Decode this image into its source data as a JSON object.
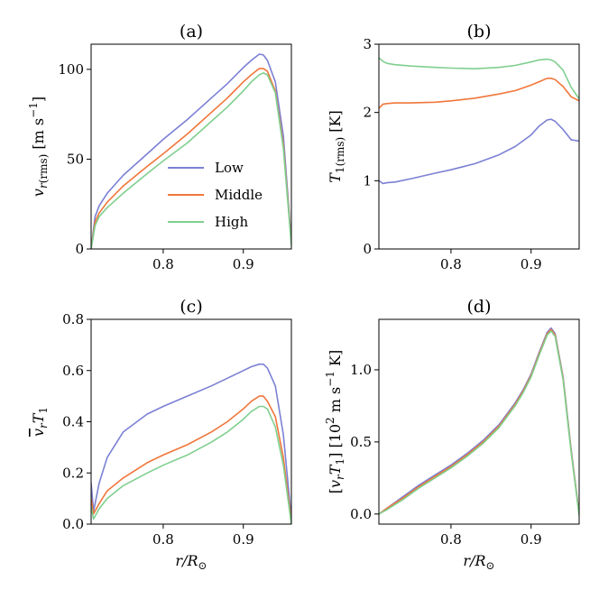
{
  "colors": {
    "low": "#7b80d4",
    "middle": "#f0763a",
    "high": "#7fcf8e"
  },
  "chart_data": [
    {
      "id": "a",
      "type": "line",
      "title": "(a)",
      "xlabel": "",
      "ylabel": "v_r(rms) [m s^-1]",
      "xlim": [
        0.71,
        0.96
      ],
      "ylim": [
        0,
        114
      ],
      "xticks": [
        0.8,
        0.9
      ],
      "xticklabels": [
        "0.8",
        "0.9"
      ],
      "yticks": [
        0,
        50,
        100
      ],
      "yticklabels": [
        "0",
        "50",
        "100"
      ],
      "legend": {
        "placement": "center-right",
        "entries": [
          "Low",
          "Middle",
          "High"
        ]
      },
      "x": [
        0.71,
        0.715,
        0.72,
        0.73,
        0.75,
        0.78,
        0.8,
        0.83,
        0.86,
        0.88,
        0.9,
        0.91,
        0.92,
        0.925,
        0.93,
        0.94,
        0.95,
        0.96
      ],
      "series": [
        {
          "name": "Low",
          "values": [
            0,
            18,
            24,
            31,
            41,
            53,
            61,
            72,
            84,
            92,
            101,
            105,
            108.5,
            108,
            105,
            93,
            63,
            4
          ]
        },
        {
          "name": "Middle",
          "values": [
            0,
            15,
            20,
            26,
            35,
            46,
            53,
            64,
            76,
            84,
            93,
            97,
            100.5,
            100.5,
            99,
            88,
            58,
            3
          ]
        },
        {
          "name": "High",
          "values": [
            0,
            13,
            18,
            23,
            31,
            42,
            49,
            59,
            71,
            79,
            88,
            93,
            97,
            98,
            97,
            87,
            56,
            2
          ]
        }
      ]
    },
    {
      "id": "b",
      "type": "line",
      "title": "(b)",
      "xlabel": "",
      "ylabel": "T_1(rms) [K]",
      "xlim": [
        0.71,
        0.96
      ],
      "ylim": [
        0,
        3
      ],
      "xticks": [
        0.8,
        0.9
      ],
      "xticklabels": [
        "0.8",
        "0.9"
      ],
      "yticks": [
        0,
        1,
        2,
        3
      ],
      "yticklabels": [
        "0",
        "1",
        "2",
        "3"
      ],
      "x": [
        0.71,
        0.715,
        0.72,
        0.73,
        0.75,
        0.78,
        0.8,
        0.83,
        0.86,
        0.88,
        0.9,
        0.91,
        0.92,
        0.925,
        0.93,
        0.94,
        0.95,
        0.96
      ],
      "series": [
        {
          "name": "Low",
          "values": [
            1.0,
            0.96,
            0.97,
            0.98,
            1.03,
            1.11,
            1.16,
            1.25,
            1.38,
            1.5,
            1.67,
            1.8,
            1.89,
            1.9,
            1.87,
            1.75,
            1.6,
            1.58
          ]
        },
        {
          "name": "Middle",
          "values": [
            2.06,
            2.12,
            2.13,
            2.14,
            2.14,
            2.15,
            2.17,
            2.21,
            2.27,
            2.32,
            2.4,
            2.45,
            2.5,
            2.5,
            2.48,
            2.38,
            2.23,
            2.17
          ]
        },
        {
          "name": "High",
          "values": [
            2.8,
            2.75,
            2.72,
            2.7,
            2.68,
            2.66,
            2.65,
            2.64,
            2.66,
            2.69,
            2.74,
            2.77,
            2.78,
            2.77,
            2.74,
            2.62,
            2.37,
            2.2
          ]
        }
      ]
    },
    {
      "id": "c",
      "type": "line",
      "title": "(c)",
      "xlabel": "r/R⊙",
      "ylabel": "overline(v_r T_1)",
      "xlim": [
        0.71,
        0.96
      ],
      "ylim": [
        0,
        0.8
      ],
      "xticks": [
        0.8,
        0.9
      ],
      "xticklabels": [
        "0.8",
        "0.9"
      ],
      "yticks": [
        0,
        0.2,
        0.4,
        0.6,
        0.8
      ],
      "yticklabels": [
        "0.0",
        "0.2",
        "0.4",
        "0.6",
        "0.8"
      ],
      "x": [
        0.71,
        0.713,
        0.72,
        0.73,
        0.75,
        0.78,
        0.8,
        0.83,
        0.86,
        0.88,
        0.9,
        0.91,
        0.92,
        0.925,
        0.93,
        0.94,
        0.95,
        0.96
      ],
      "series": [
        {
          "name": "Low",
          "values": [
            0.16,
            0.05,
            0.16,
            0.26,
            0.36,
            0.43,
            0.46,
            0.5,
            0.54,
            0.57,
            0.6,
            0.615,
            0.625,
            0.625,
            0.61,
            0.54,
            0.35,
            0.02
          ]
        },
        {
          "name": "Middle",
          "values": [
            0.1,
            0.04,
            0.08,
            0.13,
            0.18,
            0.24,
            0.27,
            0.31,
            0.36,
            0.4,
            0.45,
            0.48,
            0.5,
            0.5,
            0.48,
            0.42,
            0.26,
            0.01
          ]
        },
        {
          "name": "High",
          "values": [
            0.07,
            0.02,
            0.06,
            0.1,
            0.15,
            0.2,
            0.23,
            0.27,
            0.32,
            0.36,
            0.41,
            0.44,
            0.46,
            0.46,
            0.45,
            0.38,
            0.23,
            0.0
          ]
        }
      ]
    },
    {
      "id": "d",
      "type": "line",
      "title": "(d)",
      "xlabel": "r/R⊙",
      "ylabel": "[v_r T_1] [10^2 m s^-1 K]",
      "xlim": [
        0.71,
        0.96
      ],
      "ylim": [
        -0.07,
        1.35
      ],
      "xticks": [
        0.8,
        0.9
      ],
      "xticklabels": [
        "0.8",
        "0.9"
      ],
      "yticks": [
        0,
        0.5,
        1.0
      ],
      "yticklabels": [
        "0.0",
        "0.5",
        "1.0"
      ],
      "x": [
        0.71,
        0.72,
        0.74,
        0.76,
        0.78,
        0.8,
        0.82,
        0.84,
        0.86,
        0.88,
        0.89,
        0.9,
        0.91,
        0.92,
        0.925,
        0.93,
        0.94,
        0.95,
        0.96
      ],
      "series": [
        {
          "name": "Low",
          "values": [
            0.0,
            0.04,
            0.12,
            0.2,
            0.27,
            0.34,
            0.42,
            0.51,
            0.62,
            0.77,
            0.86,
            0.97,
            1.12,
            1.26,
            1.29,
            1.25,
            0.95,
            0.45,
            0.0
          ]
        },
        {
          "name": "Middle",
          "values": [
            0.0,
            0.04,
            0.11,
            0.19,
            0.26,
            0.33,
            0.41,
            0.5,
            0.61,
            0.76,
            0.85,
            0.96,
            1.11,
            1.25,
            1.28,
            1.24,
            0.94,
            0.44,
            0.0
          ]
        },
        {
          "name": "High",
          "values": [
            0.0,
            0.03,
            0.1,
            0.18,
            0.25,
            0.32,
            0.4,
            0.49,
            0.6,
            0.75,
            0.84,
            0.95,
            1.1,
            1.24,
            1.27,
            1.23,
            0.93,
            0.43,
            -0.01
          ]
        }
      ]
    }
  ]
}
